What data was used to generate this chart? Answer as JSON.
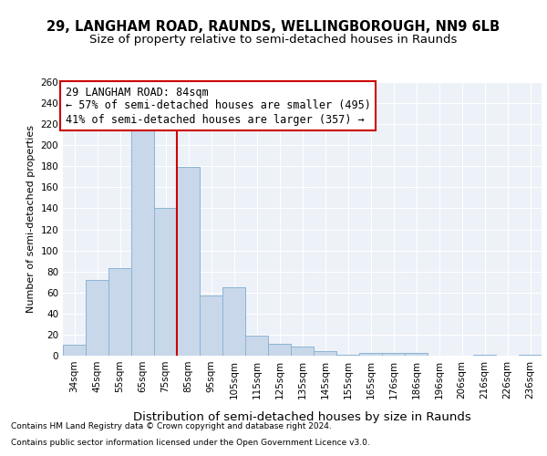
{
  "title1": "29, LANGHAM ROAD, RAUNDS, WELLINGBOROUGH, NN9 6LB",
  "title2": "Size of property relative to semi-detached houses in Raunds",
  "xlabel": "Distribution of semi-detached houses by size in Raunds",
  "ylabel": "Number of semi-detached properties",
  "categories": [
    "34sqm",
    "45sqm",
    "55sqm",
    "65sqm",
    "75sqm",
    "85sqm",
    "95sqm",
    "105sqm",
    "115sqm",
    "125sqm",
    "135sqm",
    "145sqm",
    "155sqm",
    "165sqm",
    "176sqm",
    "186sqm",
    "196sqm",
    "206sqm",
    "216sqm",
    "226sqm",
    "236sqm"
  ],
  "values": [
    10,
    72,
    83,
    215,
    140,
    179,
    57,
    65,
    19,
    11,
    9,
    4,
    1,
    3,
    3,
    3,
    0,
    0,
    1,
    0,
    1
  ],
  "bar_color": "#c8d8ea",
  "bar_edge_color": "#8ab4d4",
  "highlight_line_color": "#cc0000",
  "annotation_line1": "29 LANGHAM ROAD: 84sqm",
  "annotation_line2": "← 57% of semi-detached houses are smaller (495)",
  "annotation_line3": "41% of semi-detached houses are larger (357) →",
  "annotation_box_color": "#cc0000",
  "ylim": [
    0,
    260
  ],
  "yticks": [
    0,
    20,
    40,
    60,
    80,
    100,
    120,
    140,
    160,
    180,
    200,
    220,
    240,
    260
  ],
  "footer1": "Contains HM Land Registry data © Crown copyright and database right 2024.",
  "footer2": "Contains public sector information licensed under the Open Government Licence v3.0.",
  "bg_color": "#edf1f8",
  "grid_color": "#ffffff",
  "title_fontsize": 10.5,
  "subtitle_fontsize": 9.5,
  "ann_fontsize": 8.5,
  "ylabel_fontsize": 8.0,
  "xlabel_fontsize": 9.5,
  "footer_fontsize": 6.5,
  "tick_fontsize": 7.5
}
